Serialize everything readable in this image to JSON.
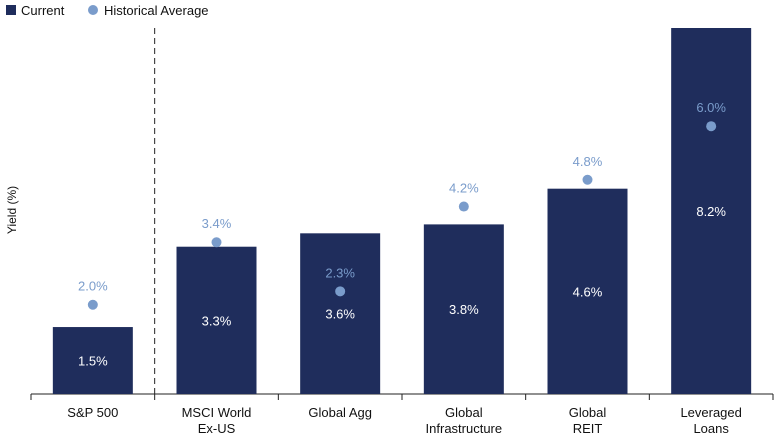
{
  "chart_data": {
    "type": "bar",
    "categories": [
      "S&P 500",
      "MSCI World\nEx-US",
      "Global Agg",
      "Global\nInfrastructure",
      "Global\nREIT",
      "Leveraged\nLoans"
    ],
    "series": [
      {
        "name": "Current",
        "kind": "bar",
        "color": "#1f2d5c",
        "values": [
          1.5,
          3.3,
          3.6,
          3.8,
          4.6,
          8.2
        ],
        "labels": [
          "1.5%",
          "3.3%",
          "3.6%",
          "3.8%",
          "4.6%",
          "8.2%"
        ]
      },
      {
        "name": "Historical Average",
        "kind": "dot",
        "color": "#7a9ccb",
        "values": [
          2.0,
          3.4,
          2.3,
          4.2,
          4.8,
          6.0
        ],
        "labels": [
          "2.0%",
          "3.4%",
          "2.3%",
          "4.2%",
          "4.8%",
          "6.0%"
        ]
      }
    ],
    "ylabel": "Yield (%)",
    "ylim": [
      0,
      8.2
    ],
    "grid": false,
    "legend": "top-left",
    "separator_after_category": 0
  }
}
